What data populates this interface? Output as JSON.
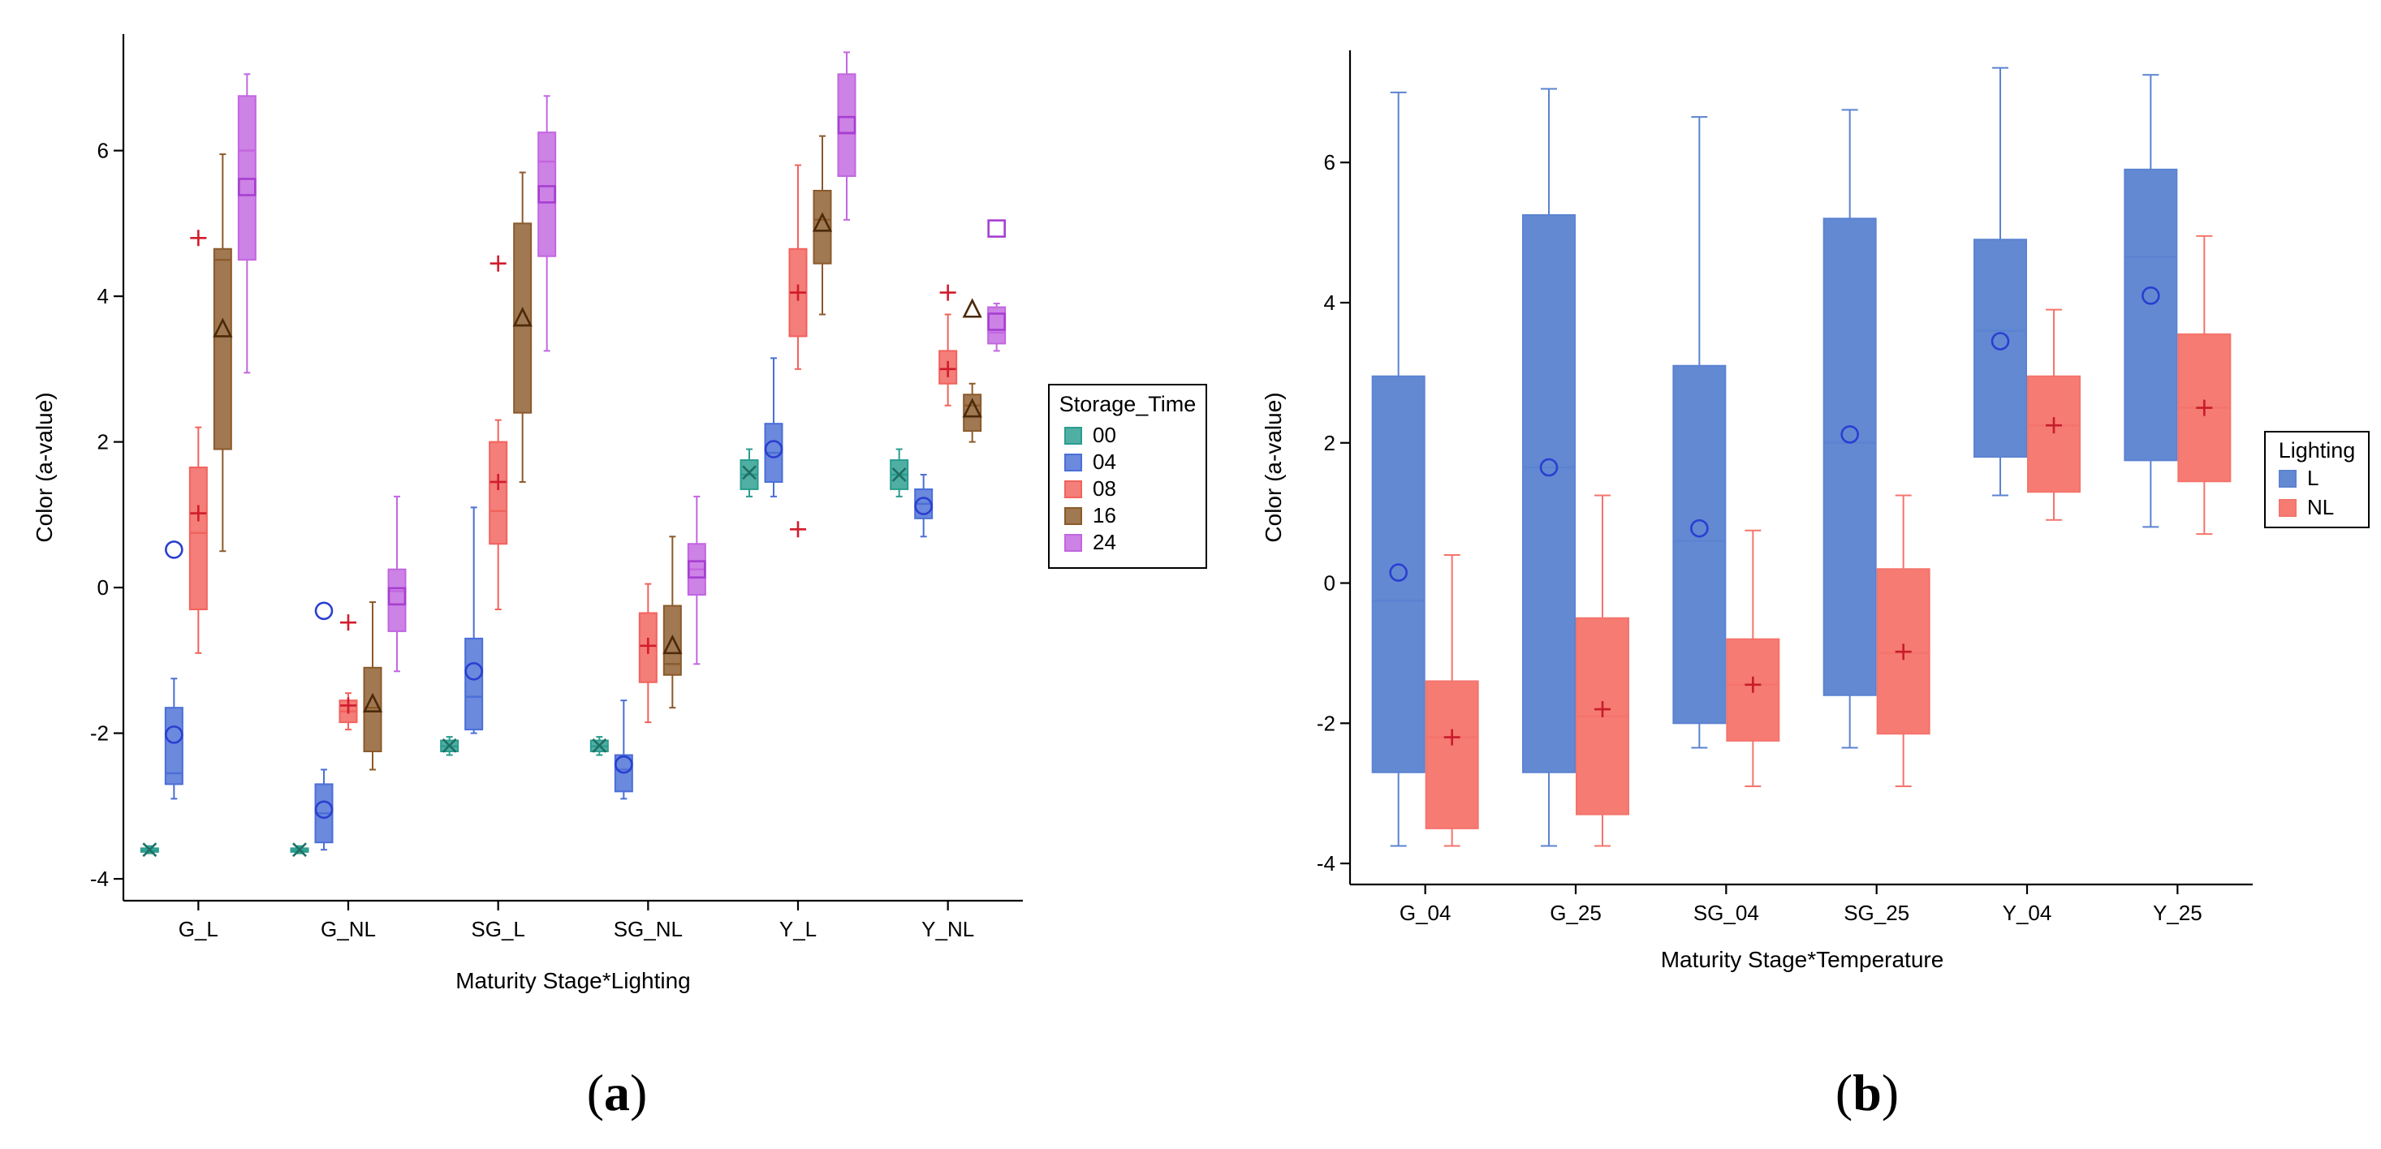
{
  "chart_data": [
    {
      "panel_label_open": "(",
      "panel_label_letter": "a",
      "panel_label_close": ")",
      "type": "box",
      "title": "",
      "xlabel": "Maturity Stage*Lighting",
      "ylabel": "Color (a-value)",
      "ylim": [
        -4.3,
        7.6
      ],
      "yticks": [
        "-4",
        "-2",
        "0",
        "2",
        "4",
        "6"
      ],
      "categories": [
        "G_L",
        "G_NL",
        "SG_L",
        "SG_NL",
        "Y_L",
        "Y_NL"
      ],
      "legend_title": "Storage_Time",
      "legend_position": "right",
      "series": [
        {
          "name": "00",
          "color": "#2a9d8f",
          "marker": "x-diamond",
          "boxes": [
            {
              "min": -3.65,
              "q1": -3.63,
              "median": -3.61,
              "q3": -3.58,
              "max": -3.55,
              "mean": -3.6,
              "outliers": []
            },
            {
              "min": -3.65,
              "q1": -3.63,
              "median": -3.61,
              "q3": -3.58,
              "max": -3.55,
              "mean": -3.6,
              "outliers": []
            },
            {
              "min": -2.3,
              "q1": -2.25,
              "median": -2.18,
              "q3": -2.1,
              "max": -2.05,
              "mean": -2.17,
              "outliers": []
            },
            {
              "min": -2.3,
              "q1": -2.25,
              "median": -2.18,
              "q3": -2.1,
              "max": -2.05,
              "mean": -2.17,
              "outliers": []
            },
            {
              "min": 1.25,
              "q1": 1.35,
              "median": 1.55,
              "q3": 1.75,
              "max": 1.9,
              "mean": 1.58,
              "outliers": []
            },
            {
              "min": 1.25,
              "q1": 1.35,
              "median": 1.55,
              "q3": 1.75,
              "max": 1.9,
              "mean": 1.55,
              "outliers": []
            }
          ]
        },
        {
          "name": "04",
          "color": "#4a6fd6",
          "marker": "circle",
          "boxes": [
            {
              "min": -2.9,
              "q1": -2.7,
              "median": -2.55,
              "q3": -1.65,
              "max": -1.25,
              "mean": -2.02,
              "outliers": [
                0.52
              ]
            },
            {
              "min": -3.6,
              "q1": -3.5,
              "median": -3.1,
              "q3": -2.7,
              "max": -2.5,
              "mean": -3.05,
              "outliers": [
                -0.32
              ]
            },
            {
              "min": -2.0,
              "q1": -1.95,
              "median": -1.5,
              "q3": -0.7,
              "max": 1.1,
              "mean": -1.15,
              "outliers": []
            },
            {
              "min": -2.9,
              "q1": -2.8,
              "median": -2.5,
              "q3": -2.3,
              "max": -1.55,
              "mean": -2.43,
              "outliers": []
            },
            {
              "min": 1.25,
              "q1": 1.45,
              "median": 1.85,
              "q3": 2.25,
              "max": 3.15,
              "mean": 1.9,
              "outliers": []
            },
            {
              "min": 0.7,
              "q1": 0.95,
              "median": 1.15,
              "q3": 1.35,
              "max": 1.55,
              "mean": 1.12,
              "outliers": []
            }
          ]
        },
        {
          "name": "08",
          "color": "#f2625c",
          "marker": "plus",
          "boxes": [
            {
              "min": -0.9,
              "q1": -0.3,
              "median": 0.75,
              "q3": 1.65,
              "max": 2.2,
              "mean": 1.02,
              "outliers": [
                4.8
              ]
            },
            {
              "min": -1.95,
              "q1": -1.85,
              "median": -1.7,
              "q3": -1.55,
              "max": -1.45,
              "mean": -1.62,
              "outliers": [
                -0.48
              ]
            },
            {
              "min": -0.3,
              "q1": 0.6,
              "median": 1.05,
              "q3": 2.0,
              "max": 2.3,
              "mean": 1.45,
              "outliers": [
                4.45
              ]
            },
            {
              "min": -1.85,
              "q1": -1.3,
              "median": -0.8,
              "q3": -0.35,
              "max": 0.05,
              "mean": -0.8,
              "outliers": []
            },
            {
              "min": 3.0,
              "q1": 3.45,
              "median": 4.05,
              "q3": 4.65,
              "max": 5.8,
              "mean": 4.05,
              "outliers": [
                0.8
              ]
            },
            {
              "min": 2.5,
              "q1": 2.8,
              "median": 3.0,
              "q3": 3.25,
              "max": 3.75,
              "mean": 3.0,
              "outliers": [
                4.05
              ]
            }
          ]
        },
        {
          "name": "16",
          "color": "#8b5a2b",
          "marker": "triangle",
          "boxes": [
            {
              "min": 0.5,
              "q1": 1.9,
              "median": 4.5,
              "q3": 4.65,
              "max": 5.95,
              "mean": 3.55,
              "outliers": []
            },
            {
              "min": -2.5,
              "q1": -2.25,
              "median": -1.65,
              "q3": -1.1,
              "max": -0.2,
              "mean": -1.6,
              "outliers": []
            },
            {
              "min": 1.45,
              "q1": 2.4,
              "median": 3.6,
              "q3": 5.0,
              "max": 5.7,
              "mean": 3.7,
              "outliers": []
            },
            {
              "min": -1.65,
              "q1": -1.2,
              "median": -1.05,
              "q3": -0.25,
              "max": 0.7,
              "mean": -0.8,
              "outliers": []
            },
            {
              "min": 3.75,
              "q1": 4.45,
              "median": 5.05,
              "q3": 5.45,
              "max": 6.2,
              "mean": 5.0,
              "outliers": []
            },
            {
              "min": 2.0,
              "q1": 2.15,
              "median": 2.5,
              "q3": 2.65,
              "max": 2.8,
              "mean": 2.45,
              "outliers": [
                3.82
              ]
            }
          ]
        },
        {
          "name": "24",
          "color": "#c266e0",
          "marker": "square",
          "boxes": [
            {
              "min": 2.95,
              "q1": 4.5,
              "median": 6.0,
              "q3": 6.75,
              "max": 7.05,
              "mean": 5.5,
              "outliers": []
            },
            {
              "min": -1.15,
              "q1": -0.6,
              "median": -0.05,
              "q3": 0.25,
              "max": 1.25,
              "mean": -0.12,
              "outliers": []
            },
            {
              "min": 3.25,
              "q1": 4.55,
              "median": 5.85,
              "q3": 6.25,
              "max": 6.75,
              "mean": 5.4,
              "outliers": []
            },
            {
              "min": -1.05,
              "q1": -0.1,
              "median": 0.25,
              "q3": 0.6,
              "max": 1.25,
              "mean": 0.25,
              "outliers": []
            },
            {
              "min": 5.05,
              "q1": 5.65,
              "median": 6.25,
              "q3": 7.05,
              "max": 7.35,
              "mean": 6.35,
              "outliers": []
            },
            {
              "min": 3.25,
              "q1": 3.35,
              "median": 3.5,
              "q3": 3.85,
              "max": 3.9,
              "mean": 3.65,
              "outliers": [
                4.93
              ]
            }
          ]
        }
      ]
    },
    {
      "panel_label_open": "(",
      "panel_label_letter": "b",
      "panel_label_close": ")",
      "type": "box",
      "title": "",
      "xlabel": "Maturity Stage*Temperature",
      "ylabel": "Color (a-value)",
      "ylim": [
        -4.3,
        7.6
      ],
      "yticks": [
        "-4",
        "-2",
        "0",
        "2",
        "4",
        "6"
      ],
      "categories": [
        "G_04",
        "G_25",
        "SG_04",
        "SG_25",
        "Y_04",
        "Y_25"
      ],
      "legend_title": "Lighting",
      "legend_position": "right",
      "series": [
        {
          "name": "L",
          "color": "#5b83d1",
          "marker": "circle",
          "boxes": [
            {
              "min": -3.75,
              "q1": -2.7,
              "median": -0.25,
              "q3": 2.95,
              "max": 7.0,
              "mean": 0.15,
              "outliers": []
            },
            {
              "min": -3.75,
              "q1": -2.7,
              "median": 1.65,
              "q3": 5.25,
              "max": 7.05,
              "mean": 1.65,
              "outliers": []
            },
            {
              "min": -2.35,
              "q1": -2.0,
              "median": 0.6,
              "q3": 3.1,
              "max": 6.65,
              "mean": 0.78,
              "outliers": []
            },
            {
              "min": -2.35,
              "q1": -1.6,
              "median": 2.0,
              "q3": 5.2,
              "max": 6.75,
              "mean": 2.12,
              "outliers": []
            },
            {
              "min": 1.25,
              "q1": 1.8,
              "median": 3.6,
              "q3": 4.9,
              "max": 7.35,
              "mean": 3.45,
              "outliers": []
            },
            {
              "min": 0.8,
              "q1": 1.75,
              "median": 4.65,
              "q3": 5.9,
              "max": 7.25,
              "mean": 4.1,
              "outliers": []
            }
          ]
        },
        {
          "name": "NL",
          "color": "#f4746c",
          "marker": "plus",
          "boxes": [
            {
              "min": -3.75,
              "q1": -3.5,
              "median": -2.2,
              "q3": -1.4,
              "max": 0.4,
              "mean": -2.2,
              "outliers": []
            },
            {
              "min": -3.75,
              "q1": -3.3,
              "median": -1.9,
              "q3": -0.5,
              "max": 1.25,
              "mean": -1.8,
              "outliers": []
            },
            {
              "min": -2.9,
              "q1": -2.25,
              "median": -1.45,
              "q3": -0.8,
              "max": 0.75,
              "mean": -1.45,
              "outliers": []
            },
            {
              "min": -2.9,
              "q1": -2.15,
              "median": -1.0,
              "q3": 0.2,
              "max": 1.25,
              "mean": -0.98,
              "outliers": []
            },
            {
              "min": 0.9,
              "q1": 1.3,
              "median": 2.25,
              "q3": 2.95,
              "max": 3.9,
              "mean": 2.25,
              "outliers": []
            },
            {
              "min": 0.7,
              "q1": 1.45,
              "median": 2.5,
              "q3": 3.55,
              "max": 4.95,
              "mean": 2.5,
              "outliers": []
            }
          ]
        }
      ]
    }
  ]
}
